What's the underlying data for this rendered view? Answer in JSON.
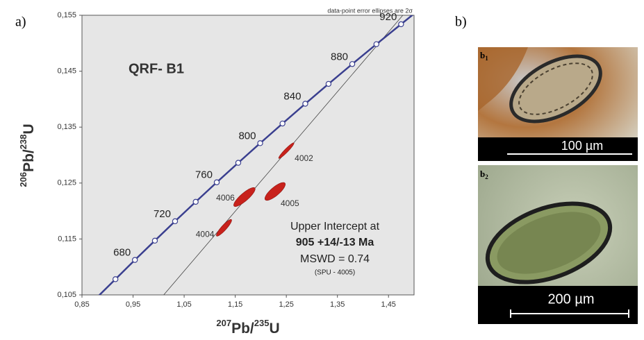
{
  "chart_data": {
    "type": "concordia",
    "panel_label": "a)",
    "note": "data-point error ellipses are 2σ",
    "sample": "QRF- B1",
    "xlabel": [
      "207",
      "Pb/",
      "235",
      "U"
    ],
    "ylabel": [
      "206",
      "Pb/",
      "238",
      "U"
    ],
    "xlim": [
      0.85,
      1.5
    ],
    "ylim": [
      0.105,
      0.155
    ],
    "xticks": [
      {
        "value": 0.85,
        "label": "0,85"
      },
      {
        "value": 0.95,
        "label": "0,95"
      },
      {
        "value": 1.05,
        "label": "1,05"
      },
      {
        "value": 1.15,
        "label": "1,15"
      },
      {
        "value": 1.25,
        "label": "1,25"
      },
      {
        "value": 1.35,
        "label": "1,35"
      },
      {
        "value": 1.45,
        "label": "1,45"
      }
    ],
    "yticks": [
      {
        "value": 0.105,
        "label": "0,105"
      },
      {
        "value": 0.115,
        "label": "0,115"
      },
      {
        "value": 0.125,
        "label": "0,125"
      },
      {
        "value": 0.135,
        "label": "0,135"
      },
      {
        "value": 0.145,
        "label": "0,145"
      },
      {
        "value": 0.155,
        "label": "0,155"
      }
    ],
    "concordia": {
      "color": "#3a3f8f",
      "x": [
        0.9155,
        0.9536,
        0.9927,
        1.0322,
        1.0726,
        1.1138,
        1.1559,
        1.1988,
        1.2425,
        1.2871,
        1.3326,
        1.379,
        1.4263,
        1.4746
      ],
      "y": [
        0.10781,
        0.11125,
        0.1147,
        0.11817,
        0.12164,
        0.12513,
        0.12862,
        0.13213,
        0.13564,
        0.13918,
        0.14273,
        0.14628,
        0.14983,
        0.1534
      ],
      "labels": [
        null,
        680,
        null,
        720,
        null,
        760,
        null,
        800,
        null,
        840,
        null,
        880,
        null,
        920
      ]
    },
    "discordia": {
      "color": "#444444",
      "x": [
        1.01,
        1.478
      ],
      "y": [
        0.105,
        0.155
      ]
    },
    "ellipses": {
      "color": "#c8221c",
      "labels": [
        "4002",
        "4006",
        "4005",
        "4004"
      ],
      "x": [
        1.25,
        1.168,
        1.228,
        1.128
      ],
      "y": [
        0.1308,
        0.1225,
        0.1235,
        0.117
      ],
      "x_err": [
        0.015,
        0.021,
        0.02,
        0.015
      ],
      "y_err": [
        0.0014,
        0.0017,
        0.0016,
        0.0015
      ],
      "rho": [
        0.95,
        0.85,
        0.8,
        0.9
      ]
    },
    "annotations": [
      "Upper  Intercept at",
      "905  +14/-13  Ma",
      "MSWD = 0.74",
      "(SPU - 4005)"
    ]
  },
  "photos": {
    "panel_label": "b)",
    "items": [
      {
        "label": [
          "b",
          "1"
        ],
        "scale": "100 µm"
      },
      {
        "label": [
          "b",
          "2"
        ],
        "scale": "200 µm"
      }
    ]
  }
}
